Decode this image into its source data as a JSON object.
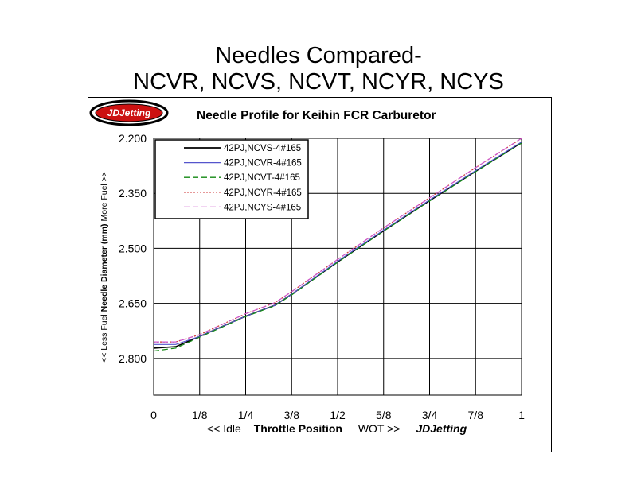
{
  "slide": {
    "title_line1": "Needles Compared-",
    "title_line2": "NCVR, NCVS, NCVT, NCYR, NCYS"
  },
  "logo": {
    "text": "JDJetting",
    "fill_color": "#cc1111",
    "outline_color": "#000000"
  },
  "chart_data": {
    "type": "line",
    "title": "Needle Profile for Keihin FCR Carburetor",
    "ylabel": {
      "left": "<< Less Fuel",
      "middle": "Needle Diameter (mm)",
      "right": "More Fuel >>"
    },
    "xlabel": {
      "left": "<< Idle",
      "middle": "Throttle Position",
      "right": "WOT >>",
      "brand": "JDJetting"
    },
    "x_ticks": [
      "0",
      "1/8",
      "1/4",
      "3/8",
      "1/2",
      "5/8",
      "3/4",
      "7/8",
      "1"
    ],
    "y_ticks": [
      "2.200",
      "2.350",
      "2.500",
      "2.650",
      "2.800"
    ],
    "y_tick_values": [
      2.2,
      2.35,
      2.5,
      2.65,
      2.8
    ],
    "xlim": [
      0,
      1
    ],
    "ylim": [
      2.2,
      2.9
    ],
    "y_inverted": true,
    "grid": true,
    "legend_position": "top-left",
    "series": [
      {
        "name": "42PJ,NCVS-4#165",
        "color": "#000000",
        "dash": "solid",
        "x": [
          0,
          0.06,
          0.125,
          0.25,
          0.33,
          0.375,
          0.5,
          0.625,
          0.75,
          0.875,
          1
        ],
        "y": [
          2.772,
          2.768,
          2.74,
          2.685,
          2.655,
          2.625,
          2.537,
          2.452,
          2.37,
          2.29,
          2.212
        ]
      },
      {
        "name": "42PJ,NCVR-4#165",
        "color": "#5555cc",
        "dash": "solid",
        "x": [
          0,
          0.06,
          0.125,
          0.25,
          0.33,
          0.375,
          0.5,
          0.625,
          0.75,
          0.875,
          1
        ],
        "y": [
          2.762,
          2.762,
          2.74,
          2.685,
          2.655,
          2.625,
          2.535,
          2.45,
          2.368,
          2.288,
          2.21
        ]
      },
      {
        "name": "42PJ,NCVT-4#165",
        "color": "#118811",
        "dash": "dashed",
        "x": [
          0,
          0.06,
          0.125,
          0.25,
          0.33,
          0.375,
          0.5,
          0.625,
          0.75,
          0.875,
          1
        ],
        "y": [
          2.78,
          2.772,
          2.742,
          2.686,
          2.656,
          2.627,
          2.538,
          2.453,
          2.371,
          2.291,
          2.213
        ]
      },
      {
        "name": "42PJ,NCYR-4#165",
        "color": "#cc3333",
        "dash": "dotted",
        "x": [
          0,
          0.06,
          0.125,
          0.25,
          0.33,
          0.375,
          0.5,
          0.625,
          0.75,
          0.875,
          1
        ],
        "y": [
          2.755,
          2.755,
          2.735,
          2.678,
          2.648,
          2.618,
          2.53,
          2.444,
          2.362,
          2.28,
          2.2
        ]
      },
      {
        "name": "42PJ,NCYS-4#165",
        "color": "#cc55cc",
        "dash": "dashed",
        "x": [
          0,
          0.06,
          0.125,
          0.25,
          0.33,
          0.375,
          0.5,
          0.625,
          0.75,
          0.875,
          1
        ],
        "y": [
          2.755,
          2.755,
          2.735,
          2.678,
          2.648,
          2.618,
          2.53,
          2.444,
          2.362,
          2.28,
          2.2
        ]
      }
    ]
  }
}
